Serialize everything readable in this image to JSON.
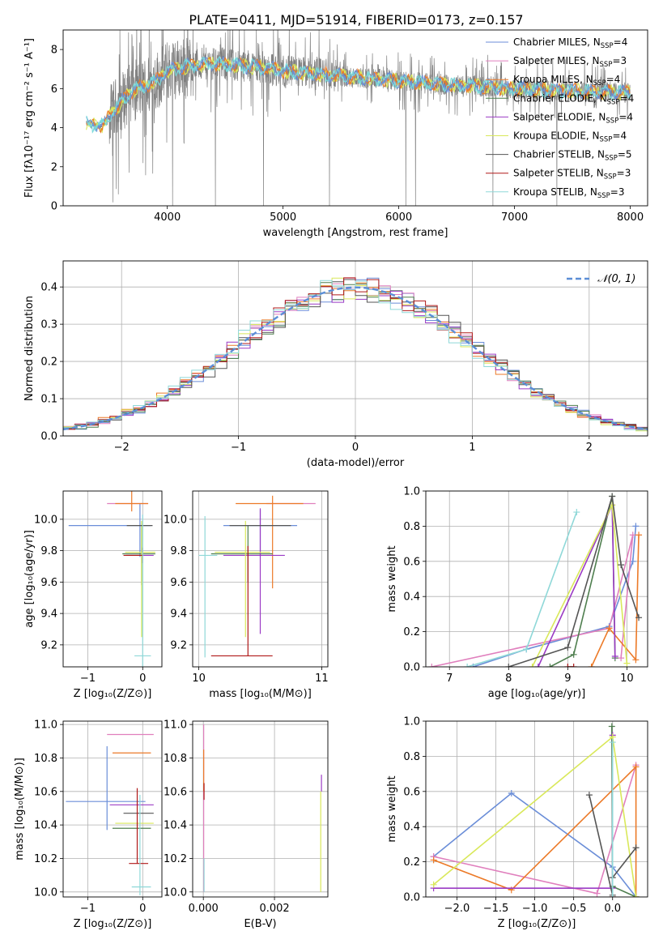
{
  "figure": {
    "title": "PLATE=0411, MJD=51914, FIBERID=0173, z=0.157"
  },
  "colors": {
    "Chabrier MILES": "#6b8ed8",
    "Salpeter MILES": "#e07fbd",
    "Kroupa MILES": "#ec7a28",
    "Chabrier ELODIE": "#4f7f4f",
    "Salpeter ELODIE": "#9b3bc5",
    "Kroupa ELODIE": "#d9e85a",
    "Chabrier STELIB": "#555555",
    "Salpeter STELIB": "#b01818",
    "Kroupa STELIB": "#8fd8d8",
    "data": "#808080",
    "model_cyan": "#79d9d9",
    "gauss": "#5b8ed6",
    "grid": "#b0b0b0"
  },
  "chart_data": [
    {
      "id": "spectrum",
      "type": "line",
      "title": "PLATE=0411, MJD=51914, FIBERID=0173, z=0.157",
      "xlabel": "wavelength [Angstrom, rest frame]",
      "ylabel": "Flux [fλ10⁻¹⁷ erg cm⁻² s⁻¹ A⁻¹]",
      "xlim": [
        3100,
        8150
      ],
      "ylim": [
        0,
        9
      ],
      "xticks": [
        4000,
        5000,
        6000,
        7000,
        8000
      ],
      "yticks": [
        0,
        2,
        4,
        6,
        8
      ],
      "grid": false,
      "legend_position": "right",
      "legend": [
        "Chabrier MILES, N_SSP=4",
        "Salpeter MILES, N_SSP=3",
        "Kroupa MILES, N_SSP=4",
        "Chabrier ELODIE, N_SSP=4",
        "Salpeter ELODIE, N_SSP=4",
        "Kroupa ELODIE, N_SSP=4",
        "Chabrier STELIB, N_SSP=5",
        "Salpeter STELIB, N_SSP=3",
        "Kroupa STELIB, N_SSP=3"
      ],
      "continuum": {
        "x": [
          3300,
          3450,
          3500,
          3600,
          3700,
          3800,
          3900,
          4000,
          4200,
          4400,
          4600,
          4800,
          5000,
          5200,
          5400,
          5600,
          5800,
          6000,
          6200,
          6400,
          6600,
          6800,
          7000,
          7200,
          7400,
          7600,
          7800,
          8000
        ],
        "y": [
          4.2,
          4.1,
          4.6,
          5.3,
          5.9,
          6.1,
          6.4,
          6.9,
          7.2,
          7.3,
          7.2,
          7.1,
          6.9,
          6.8,
          6.7,
          6.6,
          6.5,
          6.4,
          6.3,
          6.2,
          6.15,
          6.1,
          6.0,
          5.95,
          5.9,
          5.85,
          5.8,
          5.8
        ]
      }
    },
    {
      "id": "residuals",
      "type": "step",
      "xlabel": "(data-model)/error",
      "ylabel": "Normed distribution",
      "xlim": [
        -2.5,
        2.5
      ],
      "ylim": [
        0,
        0.47
      ],
      "xticks": [
        -2,
        -1,
        0,
        1,
        2
      ],
      "yticks": [
        0.0,
        0.1,
        0.2,
        0.3,
        0.4
      ],
      "grid": true,
      "legend": [
        "𝒩(0, 1)"
      ],
      "legend_position": "top-right",
      "bin_centers": [
        -2.45,
        -2.35,
        -2.25,
        -2.15,
        -2.05,
        -1.95,
        -1.85,
        -1.75,
        -1.65,
        -1.55,
        -1.45,
        -1.35,
        -1.25,
        -1.15,
        -1.05,
        -0.95,
        -0.85,
        -0.75,
        -0.65,
        -0.55,
        -0.45,
        -0.35,
        -0.25,
        -0.15,
        -0.05,
        0.05,
        0.15,
        0.25,
        0.35,
        0.45,
        0.55,
        0.65,
        0.75,
        0.85,
        0.95,
        1.05,
        1.15,
        1.25,
        1.35,
        1.45,
        1.55,
        1.65,
        1.75,
        1.85,
        1.95,
        2.05,
        2.15,
        2.25,
        2.35,
        2.45
      ]
    },
    {
      "id": "age_vs_Z",
      "type": "errorbar",
      "xlabel": "Z [log₁₀(Z/Z⊙)]",
      "ylabel": "age  [log₁₀(age/yr)]",
      "xlim": [
        -1.45,
        0.35
      ],
      "ylim": [
        9.06,
        10.18
      ],
      "xticks": [
        -1,
        0
      ],
      "yticks": [
        9.2,
        9.4,
        9.6,
        9.8,
        10.0
      ],
      "grid": true,
      "points": [
        {
          "model": "Chabrier MILES",
          "x": -0.05,
          "y": 9.96,
          "xerr": [
            1.3,
            0.2
          ],
          "yerr": [
            0.2,
            0.14
          ]
        },
        {
          "model": "Salpeter MILES",
          "x": -0.3,
          "y": 10.1,
          "xerr": [
            0.35,
            0.4
          ],
          "yerr": [
            0,
            0
          ]
        },
        {
          "model": "Kroupa MILES",
          "x": -0.2,
          "y": 10.1,
          "xerr": [
            0.3,
            0.3
          ],
          "yerr": [
            0.05,
            0.16
          ]
        },
        {
          "model": "Chabrier ELODIE",
          "x": -0.02,
          "y": 9.78,
          "xerr": [
            0.35,
            0.25
          ],
          "yerr": [
            0.2,
            0.18
          ]
        },
        {
          "model": "Salpeter ELODIE",
          "x": 0.0,
          "y": 9.77,
          "xerr": [
            0.3,
            0.2
          ],
          "yerr": [
            0.05,
            0.05
          ]
        },
        {
          "model": "Kroupa ELODIE",
          "x": -0.02,
          "y": 9.79,
          "xerr": [
            0.3,
            0.25
          ],
          "yerr": [
            0.54,
            0.2
          ]
        },
        {
          "model": "Chabrier STELIB",
          "x": -0.02,
          "y": 9.96,
          "xerr": [
            0.27,
            0.2
          ],
          "yerr": [
            0,
            0
          ]
        },
        {
          "model": "Salpeter STELIB",
          "x": -0.2,
          "y": 9.77,
          "xerr": [
            0.15,
            0.2
          ],
          "yerr": [
            0,
            0
          ]
        },
        {
          "model": "Kroupa STELIB",
          "x": 0.0,
          "y": 9.13,
          "xerr": [
            0.15,
            0.15
          ],
          "yerr": [
            0.4,
            0.9
          ]
        }
      ]
    },
    {
      "id": "age_vs_mass",
      "type": "errorbar",
      "xlabel": "mass [log₁₀(M/M⊙)]",
      "ylabel": "",
      "xlim": [
        9.95,
        11.05
      ],
      "ylim": [
        9.06,
        10.18
      ],
      "xticks": [
        10,
        11
      ],
      "yticks": [
        9.2,
        9.4,
        9.6,
        9.8,
        10.0
      ],
      "grid": true,
      "points": [
        {
          "model": "Chabrier MILES",
          "x": 10.5,
          "y": 9.96,
          "xerr": [
            0.3,
            0.3
          ],
          "yerr": [
            0.2,
            0.1
          ]
        },
        {
          "model": "Salpeter MILES",
          "x": 10.7,
          "y": 10.1,
          "xerr": [
            0.15,
            0.25
          ],
          "yerr": [
            0,
            0
          ]
        },
        {
          "model": "Kroupa MILES",
          "x": 10.6,
          "y": 10.1,
          "xerr": [
            0.3,
            0.25
          ],
          "yerr": [
            0.54,
            0.05
          ]
        },
        {
          "model": "Chabrier ELODIE",
          "x": 10.4,
          "y": 9.78,
          "xerr": [
            0.3,
            0.2
          ],
          "yerr": [
            0.18,
            0.18
          ]
        },
        {
          "model": "Salpeter ELODIE",
          "x": 10.5,
          "y": 9.77,
          "xerr": [
            0.3,
            0.2
          ],
          "yerr": [
            0.5,
            0.3
          ]
        },
        {
          "model": "Kroupa ELODIE",
          "x": 10.38,
          "y": 9.79,
          "xerr": [
            0.25,
            0.2
          ],
          "yerr": [
            0.54,
            0.2
          ]
        },
        {
          "model": "Chabrier STELIB",
          "x": 10.55,
          "y": 9.96,
          "xerr": [
            0.3,
            0.2
          ],
          "yerr": [
            0,
            0
          ]
        },
        {
          "model": "Salpeter STELIB",
          "x": 10.4,
          "y": 9.13,
          "xerr": [
            0.3,
            0.2
          ],
          "yerr": [
            0,
            0.7
          ]
        },
        {
          "model": "Kroupa STELIB",
          "x": 10.05,
          "y": 9.77,
          "xerr": [
            0.05,
            0.1
          ],
          "yerr": [
            0.65,
            0.25
          ]
        }
      ]
    },
    {
      "id": "weight_vs_age",
      "type": "line",
      "xlabel": "age  [log₁₀(age/yr)]",
      "ylabel": "mass weight",
      "xlim": [
        6.6,
        10.35
      ],
      "ylim": [
        0,
        1
      ],
      "xticks": [
        7,
        8,
        9,
        10
      ],
      "yticks": [
        0.0,
        0.2,
        0.4,
        0.6,
        0.8,
        1.0
      ],
      "grid": true,
      "series": [
        {
          "model": "Chabrier MILES",
          "x": [
            7.4,
            8.3,
            9.7,
            10.1,
            10.15
          ],
          "y": [
            0.0,
            0.1,
            0.23,
            0.6,
            0.8
          ]
        },
        {
          "model": "Salpeter MILES",
          "x": [
            6.7,
            9.7,
            10.1,
            9.9
          ],
          "y": [
            0.0,
            0.22,
            0.75,
            0.05
          ]
        },
        {
          "model": "Kroupa MILES",
          "x": [
            9.4,
            9.7,
            10.15,
            10.2
          ],
          "y": [
            0.0,
            0.22,
            0.04,
            0.75
          ]
        },
        {
          "model": "Chabrier ELODIE",
          "x": [
            8.7,
            9.1,
            9.75,
            9.8
          ],
          "y": [
            0.0,
            0.07,
            0.97,
            0.05
          ]
        },
        {
          "model": "Salpeter ELODIE",
          "x": [
            8.5,
            9.75,
            9.8
          ],
          "y": [
            0.0,
            0.92,
            0.06
          ]
        },
        {
          "model": "Kroupa ELODIE",
          "x": [
            8.4,
            9.75,
            10.0
          ],
          "y": [
            0.0,
            0.92,
            0.02
          ]
        },
        {
          "model": "Chabrier STELIB",
          "x": [
            8.0,
            9.0,
            9.75,
            9.9,
            10.2
          ],
          "y": [
            0.0,
            0.11,
            0.97,
            0.58,
            0.28
          ]
        },
        {
          "model": "Salpeter STELIB",
          "x": [
            9.0,
            9.1
          ],
          "y": [
            0.0,
            0.0
          ]
        },
        {
          "model": "Kroupa STELIB",
          "x": [
            7.3,
            8.3,
            9.15
          ],
          "y": [
            0.0,
            0.1,
            0.88
          ]
        }
      ]
    },
    {
      "id": "mass_vs_Z",
      "type": "errorbar",
      "xlabel": "Z [log₁₀(Z/Z⊙)]",
      "ylabel": "mass [log₁₀(M/M⊙)]",
      "xlim": [
        -1.45,
        0.35
      ],
      "ylim": [
        9.97,
        11.02
      ],
      "xticks": [
        -1,
        0
      ],
      "yticks": [
        10.0,
        10.2,
        10.4,
        10.6,
        10.8,
        11.0
      ],
      "grid": true,
      "points": [
        {
          "model": "Chabrier MILES",
          "x": -0.65,
          "y": 10.54,
          "xerr": [
            0.75,
            0.7
          ],
          "yerr": [
            0.17,
            0.33
          ]
        },
        {
          "model": "Salpeter MILES",
          "x": -0.2,
          "y": 10.94,
          "xerr": [
            0.45,
            0.4
          ],
          "yerr": [
            0,
            0
          ]
        },
        {
          "model": "Kroupa MILES",
          "x": -0.25,
          "y": 10.83,
          "xerr": [
            0.3,
            0.4
          ],
          "yerr": [
            0,
            0
          ]
        },
        {
          "model": "Chabrier ELODIE",
          "x": -0.2,
          "y": 10.38,
          "xerr": [
            0.35,
            0.35
          ],
          "yerr": [
            0,
            0
          ]
        },
        {
          "model": "Salpeter ELODIE",
          "x": -0.3,
          "y": 10.52,
          "xerr": [
            0.3,
            0.5
          ],
          "yerr": [
            0,
            0
          ]
        },
        {
          "model": "Kroupa ELODIE",
          "x": -0.2,
          "y": 10.41,
          "xerr": [
            0.3,
            0.4
          ],
          "yerr": [
            0,
            0
          ]
        },
        {
          "model": "Chabrier STELIB",
          "x": -0.1,
          "y": 10.47,
          "xerr": [
            0.25,
            0.3
          ],
          "yerr": [
            0,
            0
          ]
        },
        {
          "model": "Salpeter STELIB",
          "x": -0.1,
          "y": 10.17,
          "xerr": [
            0.15,
            0.2
          ],
          "yerr": [
            0,
            0.45
          ]
        },
        {
          "model": "Kroupa STELIB",
          "x": -0.05,
          "y": 10.03,
          "xerr": [
            0.15,
            0.2
          ],
          "yerr": [
            0.05,
            0.55
          ]
        }
      ]
    },
    {
      "id": "mass_vs_EBV",
      "type": "errorbar",
      "xlabel": "E(B-V)",
      "ylabel": "",
      "xlim": [
        -0.0003,
        0.0035
      ],
      "ylim": [
        9.97,
        11.02
      ],
      "xticks": [
        0.0,
        0.002
      ],
      "xticklabels": [
        "0.000",
        "0.002"
      ],
      "yticks": [
        10.0,
        10.2,
        10.4,
        10.6,
        10.8,
        11.0
      ],
      "grid": true,
      "points": [
        {
          "model": "Salpeter MILES",
          "x": 1e-05,
          "y": 10.8,
          "xerr": [
            0,
            0
          ],
          "yerr": [
            0.8,
            0.2
          ]
        },
        {
          "model": "Kroupa MILES",
          "x": 1e-05,
          "y": 10.7,
          "xerr": [
            0,
            0
          ],
          "yerr": [
            0.1,
            0.15
          ]
        },
        {
          "model": "Salpeter STELIB",
          "x": 2e-05,
          "y": 10.6,
          "xerr": [
            0,
            0
          ],
          "yerr": [
            0.05,
            0.05
          ]
        },
        {
          "model": "Kroupa STELIB",
          "x": 2e-05,
          "y": 10.1,
          "xerr": [
            0,
            0
          ],
          "yerr": [
            0.1,
            0.1
          ]
        },
        {
          "model": "Salpeter ELODIE",
          "x": 0.00332,
          "y": 10.65,
          "xerr": [
            0,
            0
          ],
          "yerr": [
            0.05,
            0.05
          ]
        },
        {
          "model": "Kroupa ELODIE",
          "x": 0.0033,
          "y": 10.3,
          "xerr": [
            0,
            0
          ],
          "yerr": [
            0.3,
            0.3
          ]
        }
      ]
    },
    {
      "id": "weight_vs_Z",
      "type": "line",
      "xlabel": "Z [log₁₀(Z/Z⊙)]",
      "ylabel": "mass weight",
      "xlim": [
        -2.4,
        0.45
      ],
      "ylim": [
        0,
        1
      ],
      "xticks": [
        -2.0,
        -1.5,
        -1.0,
        -0.5,
        0.0
      ],
      "xticklabels": [
        "−2.0",
        "−1.5",
        "−1.0",
        "−0.5",
        "0.0"
      ],
      "yticks": [
        0.0,
        0.2,
        0.4,
        0.6,
        0.8,
        1.0
      ],
      "grid": true,
      "series": [
        {
          "model": "Chabrier MILES",
          "x": [
            -2.3,
            -1.3,
            0.0,
            0.3
          ],
          "y": [
            0.23,
            0.59,
            0.17,
            0.0
          ]
        },
        {
          "model": "Salpeter MILES",
          "x": [
            -2.3,
            -0.2,
            0.3
          ],
          "y": [
            0.23,
            0.02,
            0.75
          ]
        },
        {
          "model": "Kroupa MILES",
          "x": [
            -2.3,
            -1.3,
            0.3,
            0.3
          ],
          "y": [
            0.21,
            0.04,
            0.74,
            0.0
          ]
        },
        {
          "model": "Chabrier ELODIE",
          "x": [
            -0.01,
            0.0,
            0.3
          ],
          "y": [
            0.97,
            0.06,
            0.0
          ]
        },
        {
          "model": "Salpeter ELODIE",
          "x": [
            -2.3,
            0.0,
            0.0
          ],
          "y": [
            0.05,
            0.05,
            0.92
          ]
        },
        {
          "model": "Kroupa ELODIE",
          "x": [
            -2.3,
            0.0,
            0.3
          ],
          "y": [
            0.07,
            0.91,
            0.0
          ]
        },
        {
          "model": "Chabrier STELIB",
          "x": [
            -0.3,
            0.0,
            0.0,
            0.3
          ],
          "y": [
            0.58,
            0.01,
            0.11,
            0.28
          ]
        },
        {
          "model": "Salpeter STELIB",
          "x": [
            0.0,
            0.0
          ],
          "y": [
            0.0,
            0.0
          ]
        },
        {
          "model": "Kroupa STELIB",
          "x": [
            0.0,
            0.0
          ],
          "y": [
            0.88,
            0.0
          ]
        }
      ]
    }
  ]
}
